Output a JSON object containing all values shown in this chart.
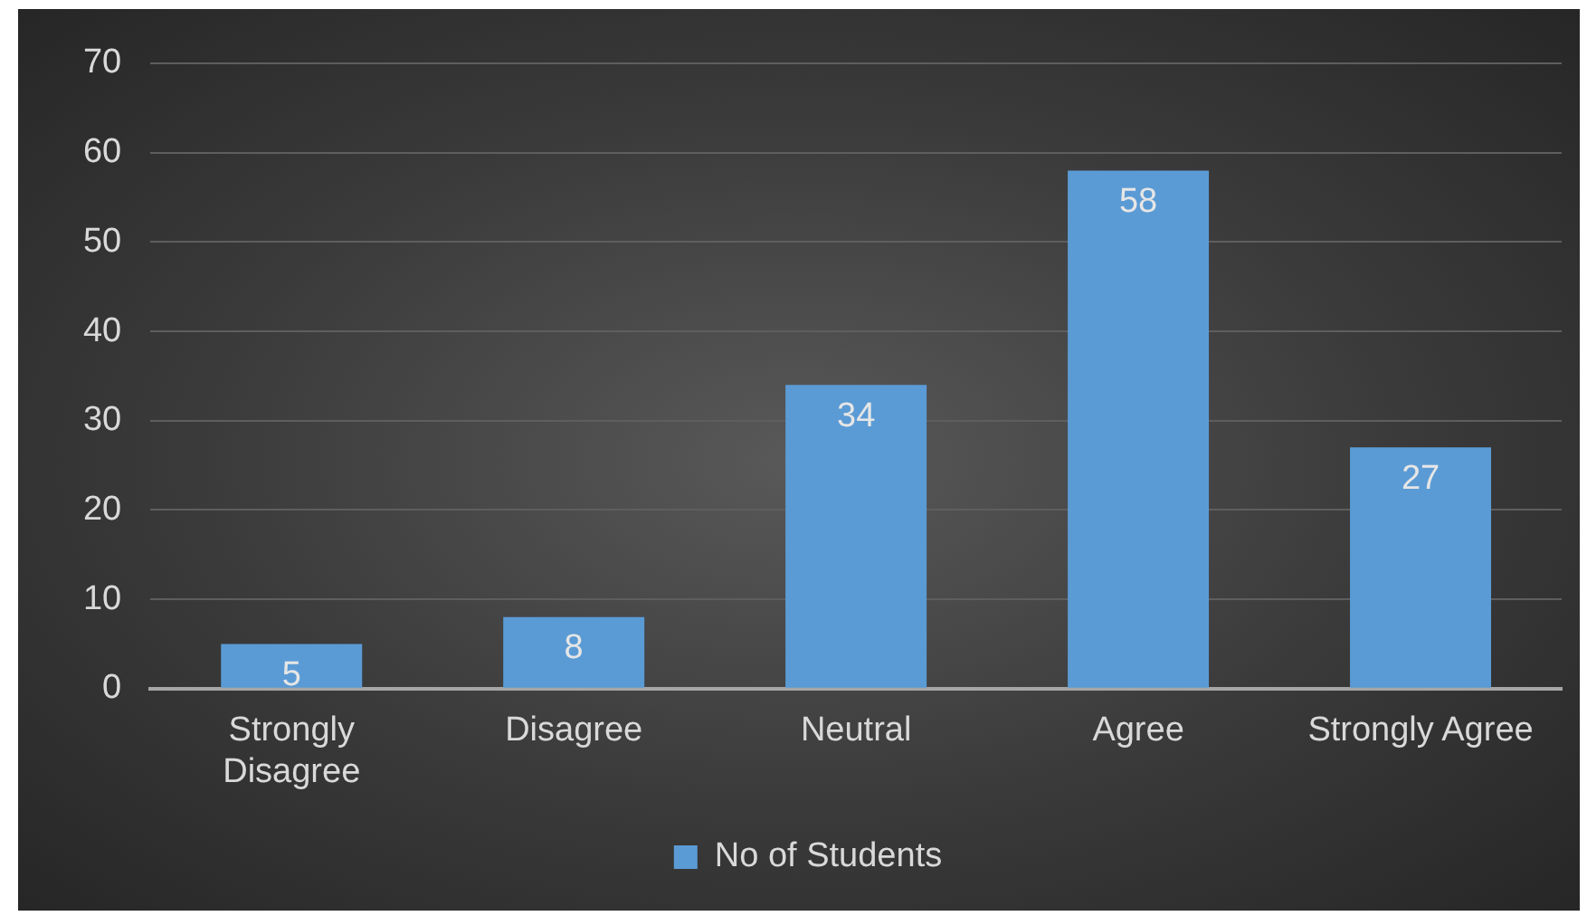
{
  "chart_data": {
    "type": "bar",
    "categories": [
      "Strongly Disagree",
      "Disagree",
      "Neutral",
      "Agree",
      "Strongly Agree"
    ],
    "series": [
      {
        "name": "No of Students",
        "color": "#5b9bd5",
        "values": [
          5,
          8,
          34,
          58,
          27
        ]
      }
    ],
    "ylim": [
      0,
      70
    ],
    "yticks": [
      0,
      10,
      20,
      30,
      40,
      50,
      60,
      70
    ],
    "grid": "y",
    "legend": "bottom",
    "data_labels": true
  }
}
